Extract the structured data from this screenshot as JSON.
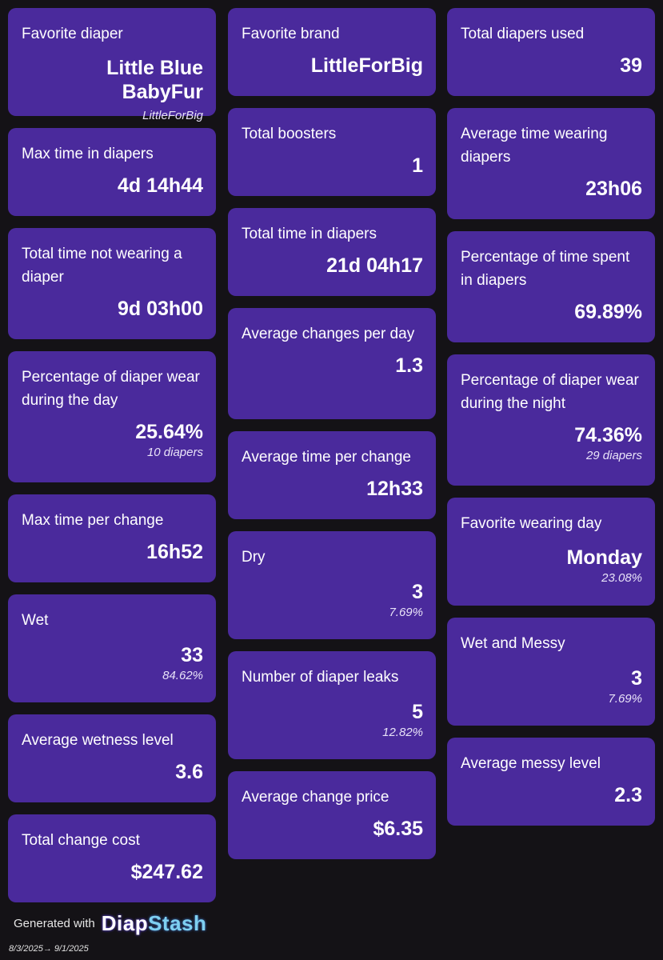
{
  "columns": [
    [
      {
        "label": "Favorite diaper",
        "value": "Little Blue BabyFur",
        "sub": "LittleForBig"
      },
      {
        "label": "Max time in diapers",
        "value": "4d 14h44"
      },
      {
        "label": "Total time not wearing a diaper",
        "value": "9d 03h00"
      },
      {
        "label": "Percentage of diaper wear during the day",
        "value": "25.64%",
        "sub": "10 diapers"
      },
      {
        "label": "Max time per change",
        "value": "16h52"
      },
      {
        "label": "Wet",
        "value": "33",
        "sub": "84.62%"
      },
      {
        "label": "Average wetness level",
        "value": "3.6"
      },
      {
        "label": "Total change cost",
        "value": "$247.62"
      }
    ],
    [
      {
        "label": "Favorite brand",
        "value": "LittleForBig"
      },
      {
        "label": "Total boosters",
        "value": "1"
      },
      {
        "label": "Total time in diapers",
        "value": "21d 04h17"
      },
      {
        "label": "Average changes per day",
        "value": "1.3"
      },
      {
        "label": "Average time per change",
        "value": "12h33"
      },
      {
        "label": "Dry",
        "value": "3",
        "sub": "7.69%"
      },
      {
        "label": "Number of diaper leaks",
        "value": "5",
        "sub": "12.82%"
      },
      {
        "label": "Average change price",
        "value": "$6.35"
      }
    ],
    [
      {
        "label": "Total diapers used",
        "value": "39"
      },
      {
        "label": "Average time wearing diapers",
        "value": "23h06"
      },
      {
        "label": "Percentage of time spent in diapers",
        "value": "69.89%"
      },
      {
        "label": "Percentage of diaper wear during the night",
        "value": "74.36%",
        "sub": "29 diapers"
      },
      {
        "label": "Favorite wearing day",
        "value": "Monday",
        "sub": "23.08%"
      },
      {
        "label": "Wet and Messy",
        "value": "3",
        "sub": "7.69%"
      },
      {
        "label": "Average messy level",
        "value": "2.3"
      }
    ]
  ],
  "footer": {
    "generated_with": "Generated with",
    "logo_part1": "Diap",
    "logo_part2": "Stash",
    "date_range": "8/3/2025→ 9/1/2025"
  },
  "colors": {
    "background": "#141216",
    "card": "#4a2a9c",
    "text": "#ffffff"
  }
}
